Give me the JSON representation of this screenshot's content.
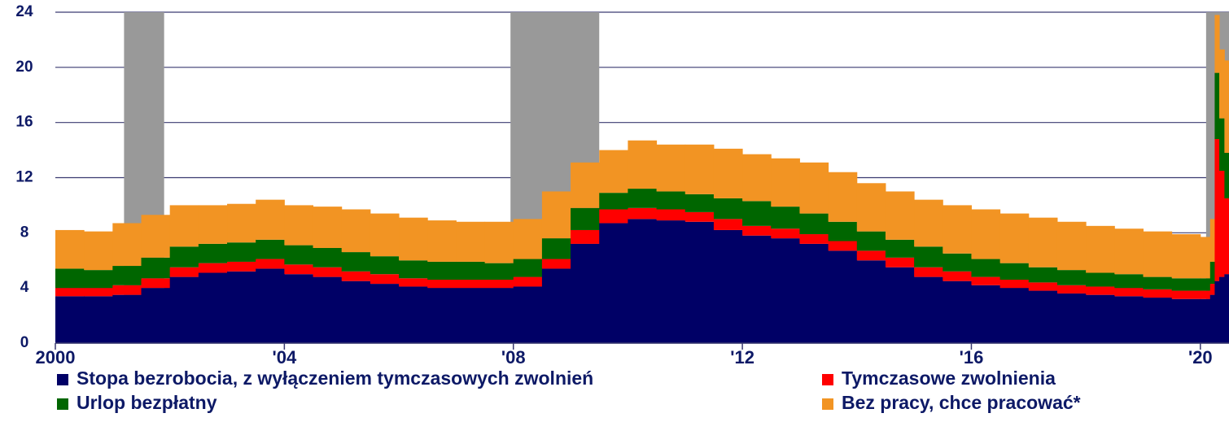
{
  "chart_data": {
    "type": "stacked_bar",
    "x": [
      2000.0,
      2000.5,
      2001.0,
      2001.5,
      2002.0,
      2002.5,
      2003.0,
      2003.5,
      2004.0,
      2004.5,
      2005.0,
      2005.5,
      2006.0,
      2006.5,
      2007.0,
      2007.5,
      2008.0,
      2008.5,
      2009.0,
      2009.5,
      2010.0,
      2010.5,
      2011.0,
      2011.5,
      2012.0,
      2012.5,
      2013.0,
      2013.5,
      2014.0,
      2014.5,
      2015.0,
      2015.5,
      2016.0,
      2016.5,
      2017.0,
      2017.5,
      2018.0,
      2018.5,
      2019.0,
      2019.5,
      2020.0,
      2020.17,
      2020.25,
      2020.33,
      2020.42
    ],
    "series": [
      {
        "name": "Stopa bezrobocia, z wyłączeniem tymczasowych zwolnień",
        "color": "#000066",
        "values": [
          3.4,
          3.4,
          3.5,
          4.0,
          4.8,
          5.1,
          5.2,
          5.4,
          5.0,
          4.8,
          4.5,
          4.3,
          4.1,
          4.0,
          4.0,
          4.0,
          4.1,
          5.4,
          7.2,
          8.7,
          9.0,
          8.9,
          8.8,
          8.2,
          7.8,
          7.6,
          7.2,
          6.7,
          6.0,
          5.5,
          4.8,
          4.5,
          4.2,
          4.0,
          3.8,
          3.6,
          3.5,
          3.4,
          3.3,
          3.2,
          3.2,
          3.5,
          4.5,
          4.8,
          5.0
        ]
      },
      {
        "name": "Tymczasowe zwolnienia",
        "color": "#ff0000",
        "values": [
          0.6,
          0.6,
          0.7,
          0.7,
          0.7,
          0.7,
          0.7,
          0.7,
          0.7,
          0.7,
          0.7,
          0.7,
          0.6,
          0.6,
          0.6,
          0.6,
          0.7,
          0.7,
          1.0,
          1.0,
          0.8,
          0.8,
          0.7,
          0.8,
          0.7,
          0.7,
          0.7,
          0.7,
          0.7,
          0.7,
          0.7,
          0.7,
          0.6,
          0.6,
          0.6,
          0.6,
          0.6,
          0.6,
          0.6,
          0.6,
          0.6,
          0.8,
          10.3,
          7.7,
          5.5
        ]
      },
      {
        "name": "Urlop bezpłatny",
        "color": "#006600",
        "values": [
          1.4,
          1.3,
          1.4,
          1.5,
          1.5,
          1.4,
          1.4,
          1.4,
          1.4,
          1.4,
          1.4,
          1.3,
          1.3,
          1.3,
          1.3,
          1.2,
          1.3,
          1.5,
          1.6,
          1.2,
          1.4,
          1.3,
          1.3,
          1.5,
          1.8,
          1.6,
          1.5,
          1.4,
          1.4,
          1.3,
          1.5,
          1.3,
          1.3,
          1.2,
          1.1,
          1.1,
          1.0,
          1.0,
          0.9,
          0.9,
          0.9,
          1.6,
          4.8,
          3.8,
          3.3
        ]
      },
      {
        "name": "Bez pracy, chce pracować*",
        "color": "#f29423",
        "values": [
          2.8,
          2.8,
          3.1,
          3.1,
          3.0,
          2.8,
          2.8,
          2.9,
          2.9,
          3.0,
          3.1,
          3.1,
          3.1,
          3.0,
          2.9,
          3.0,
          2.9,
          3.4,
          3.3,
          3.1,
          3.5,
          3.4,
          3.6,
          3.6,
          3.4,
          3.5,
          3.7,
          3.6,
          3.5,
          3.5,
          3.4,
          3.5,
          3.6,
          3.6,
          3.6,
          3.5,
          3.4,
          3.3,
          3.3,
          3.2,
          3.0,
          3.1,
          4.2,
          5.0,
          6.7
        ]
      }
    ],
    "xlim": [
      2000,
      2020.5
    ],
    "xticks": [
      {
        "value": 2000,
        "label": "2000"
      },
      {
        "value": 2004,
        "label": "'04"
      },
      {
        "value": 2008,
        "label": "'08"
      },
      {
        "value": 2012,
        "label": "'12"
      },
      {
        "value": 2016,
        "label": "'16"
      },
      {
        "value": 2020,
        "label": "'20"
      }
    ],
    "ylim": [
      0,
      24
    ],
    "yticks": [
      0,
      4,
      8,
      12,
      16,
      20,
      24
    ],
    "grid": true,
    "recessions": [
      [
        2001.2,
        2001.9
      ],
      [
        2007.95,
        2009.5
      ],
      [
        2020.1,
        2020.5
      ]
    ],
    "recession_color": "#999999"
  }
}
